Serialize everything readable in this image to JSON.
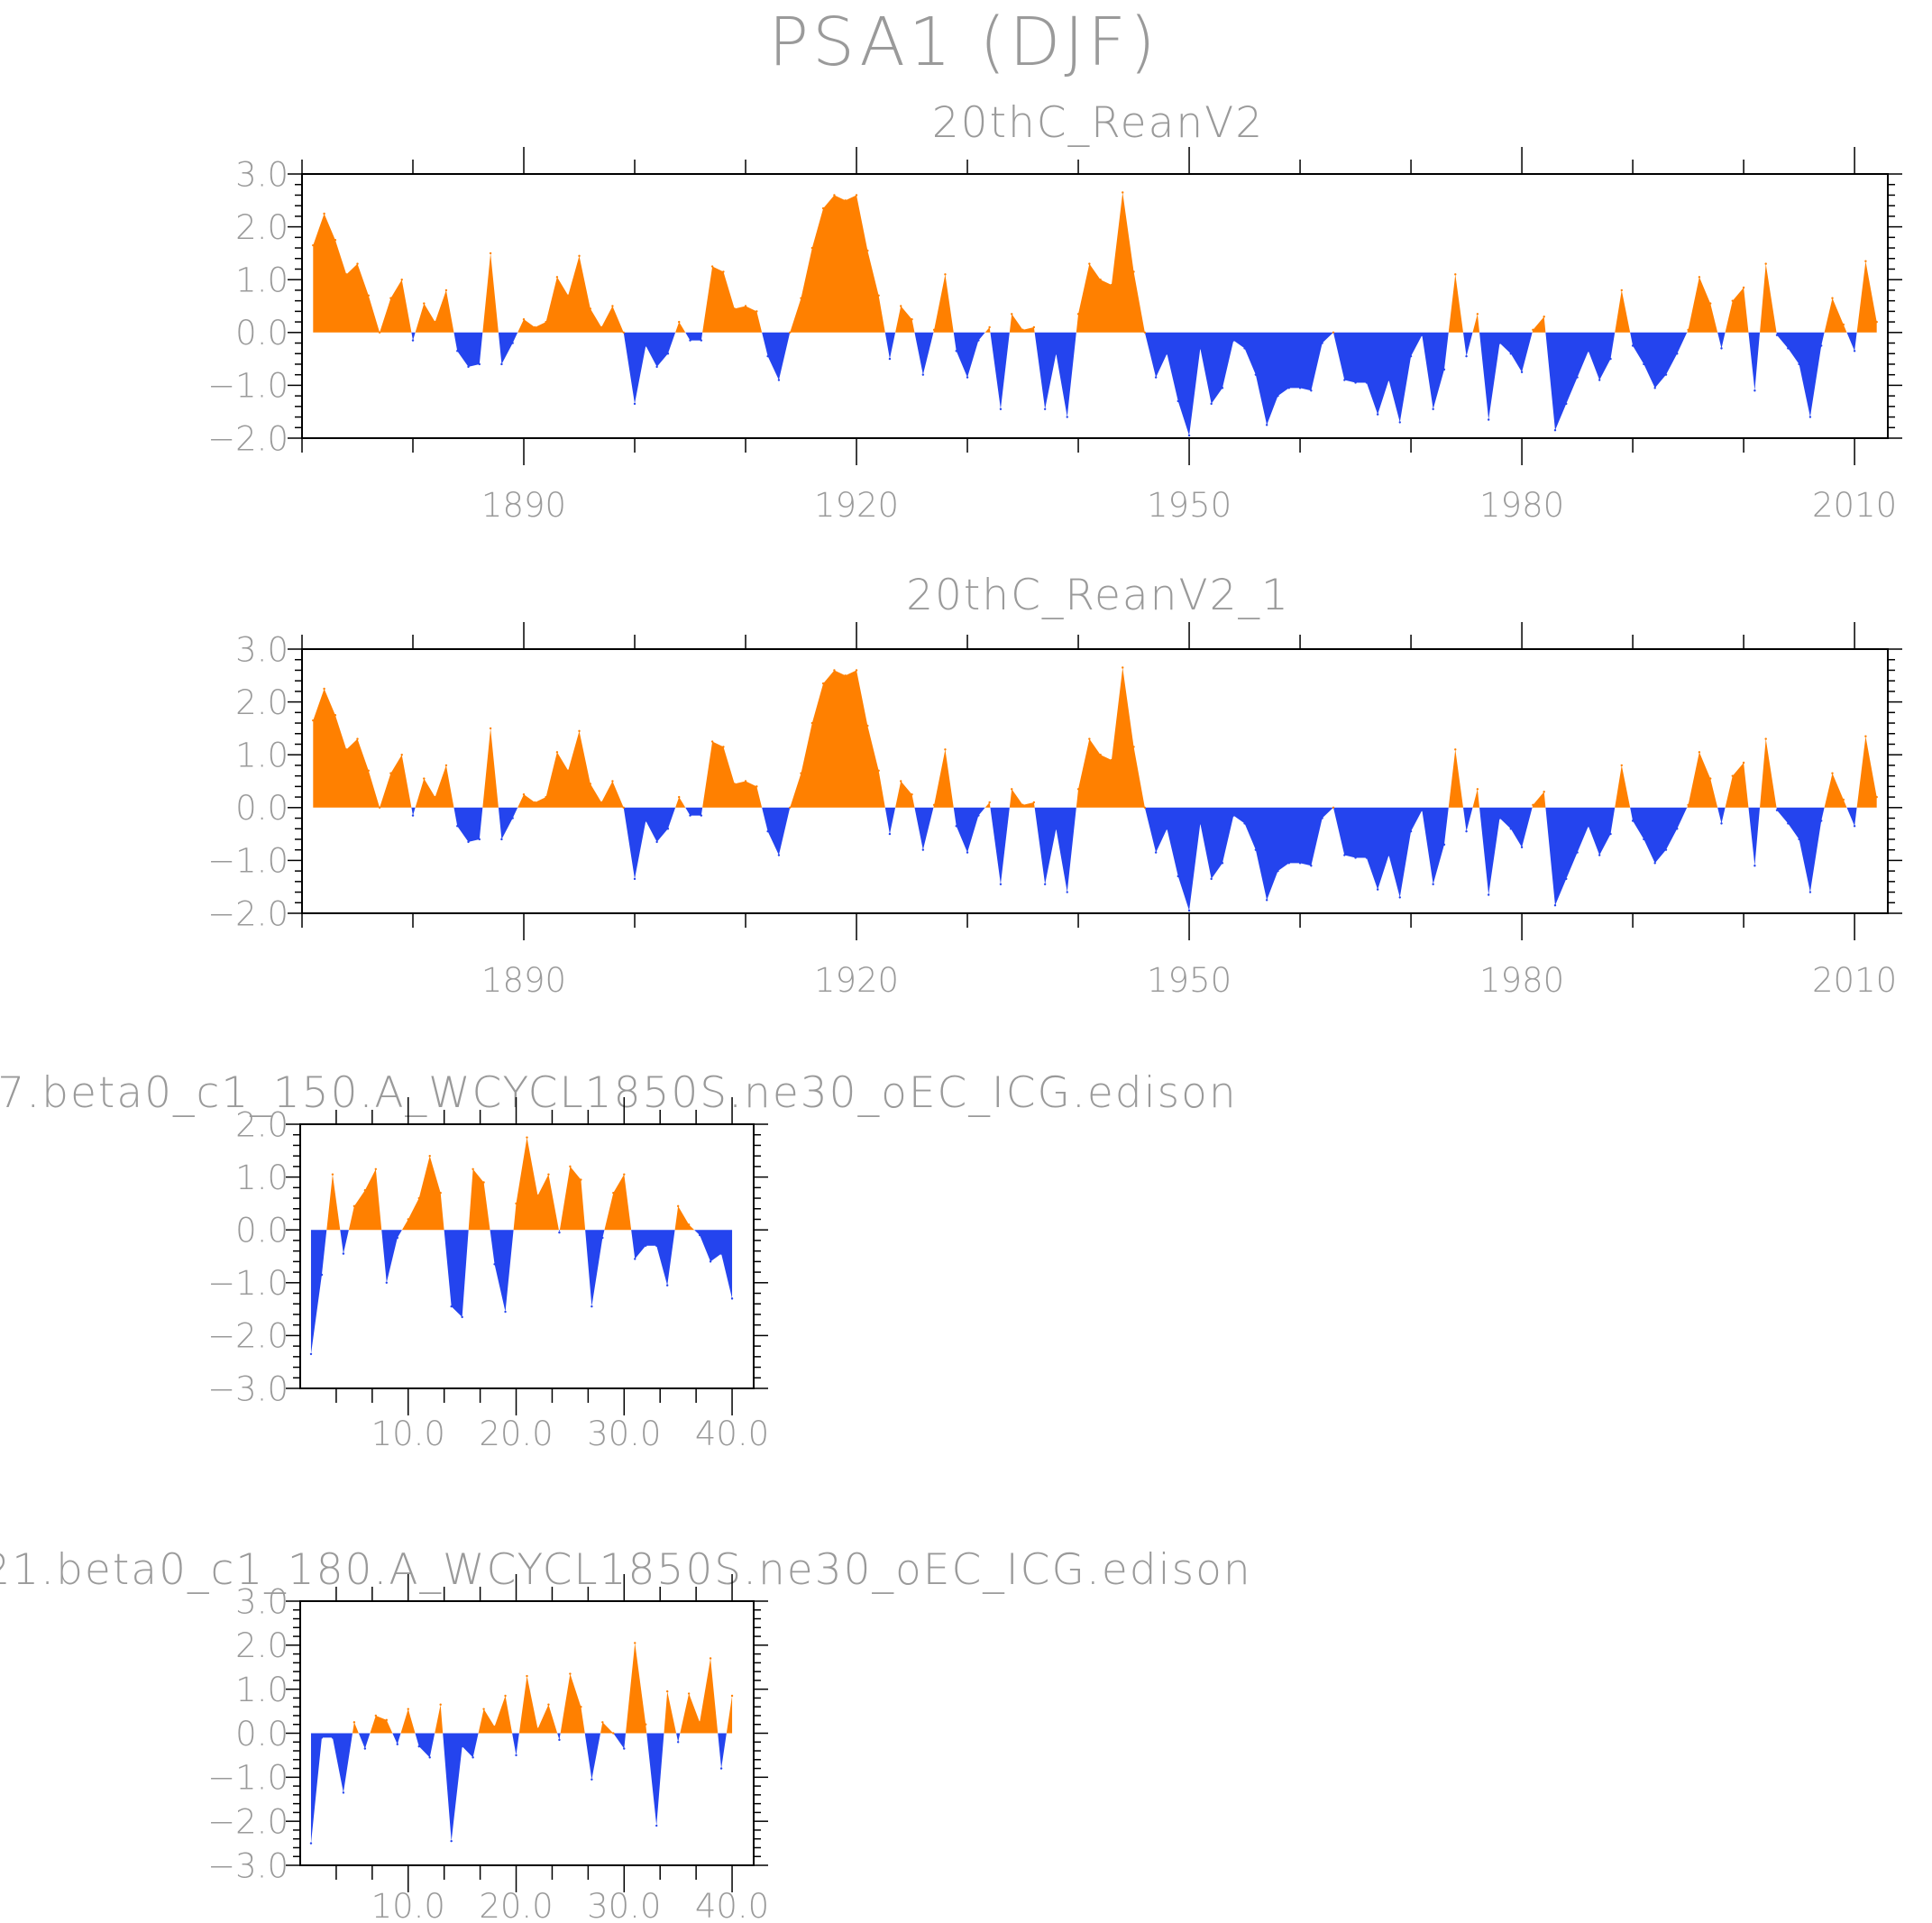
{
  "figure": {
    "title": "PSA1 (DJF)"
  },
  "colors": {
    "positive": "#ff8000",
    "negative": "#2444ee",
    "axis": "#000000",
    "text": "#9a9a9a"
  },
  "chart_data": [
    {
      "type": "area",
      "title": "20thC_ReanV2",
      "xlabel": "",
      "ylabel": "",
      "xlim": [
        1870,
        2013
      ],
      "ylim": [
        -2.0,
        3.0
      ],
      "xticks": [
        1890,
        1920,
        1950,
        1980,
        2010
      ],
      "xtick_labels": [
        "1890",
        "1920",
        "1950",
        "1980",
        "2010"
      ],
      "yticks": [
        3.0,
        2.0,
        1.0,
        0.0,
        -1.0,
        -2.0
      ],
      "ytick_labels": [
        "3.0",
        "2.0",
        "1.0",
        "0.0",
        "−1.0",
        "−2.0"
      ],
      "x_start": 1871,
      "values": [
        1.65,
        2.25,
        1.75,
        1.1,
        1.3,
        0.7,
        0.0,
        0.65,
        1.0,
        -0.15,
        0.55,
        0.2,
        0.8,
        -0.35,
        -0.65,
        -0.6,
        1.5,
        -0.6,
        -0.2,
        0.25,
        0.1,
        0.2,
        1.05,
        0.7,
        1.45,
        0.45,
        0.1,
        0.5,
        0.0,
        -1.35,
        -0.25,
        -0.65,
        -0.4,
        0.2,
        -0.15,
        -0.15,
        1.25,
        1.15,
        0.45,
        0.5,
        0.4,
        -0.45,
        -0.9,
        0.0,
        0.65,
        1.6,
        2.35,
        2.6,
        2.5,
        2.6,
        1.55,
        0.7,
        -0.5,
        0.5,
        0.25,
        -0.8,
        0.05,
        1.1,
        -0.35,
        -0.85,
        -0.15,
        0.1,
        -1.45,
        0.35,
        0.05,
        0.1,
        -1.45,
        -0.4,
        -1.6,
        0.35,
        1.3,
        1.0,
        0.9,
        2.65,
        1.15,
        0.0,
        -0.85,
        -0.4,
        -1.3,
        -1.95,
        -0.3,
        -1.35,
        -1.05,
        -0.15,
        -0.3,
        -0.8,
        -1.75,
        -1.2,
        -1.05,
        -1.05,
        -1.1,
        -0.2,
        0.0,
        -0.9,
        -0.95,
        -0.95,
        -1.55,
        -0.9,
        -1.7,
        -0.45,
        -0.05,
        -1.45,
        -0.7,
        1.1,
        -0.45,
        0.35,
        -1.65,
        -0.2,
        -0.4,
        -0.75,
        0.05,
        0.3,
        -1.85,
        -1.35,
        -0.85,
        -0.35,
        -0.9,
        -0.5,
        0.8,
        -0.25,
        -0.6,
        -1.05,
        -0.8,
        -0.4,
        0.05,
        1.05,
        0.55,
        -0.3,
        0.6,
        0.85,
        -1.1,
        1.3,
        -0.05,
        -0.3,
        -0.6,
        -1.6,
        -0.25,
        0.65,
        0.15,
        -0.35,
        1.35,
        0.2
      ]
    },
    {
      "type": "area",
      "title": "20thC_ReanV2_1",
      "xlabel": "",
      "ylabel": "",
      "xlim": [
        1870,
        2013
      ],
      "ylim": [
        -2.0,
        3.0
      ],
      "xticks": [
        1890,
        1920,
        1950,
        1980,
        2010
      ],
      "xtick_labels": [
        "1890",
        "1920",
        "1950",
        "1980",
        "2010"
      ],
      "yticks": [
        3.0,
        2.0,
        1.0,
        0.0,
        -1.0,
        -2.0
      ],
      "ytick_labels": [
        "3.0",
        "2.0",
        "1.0",
        "0.0",
        "−1.0",
        "−2.0"
      ],
      "x_start": 1871,
      "values": [
        1.65,
        2.25,
        1.75,
        1.1,
        1.3,
        0.7,
        0.0,
        0.65,
        1.0,
        -0.15,
        0.55,
        0.2,
        0.8,
        -0.35,
        -0.65,
        -0.6,
        1.5,
        -0.6,
        -0.2,
        0.25,
        0.1,
        0.2,
        1.05,
        0.7,
        1.45,
        0.45,
        0.1,
        0.5,
        0.0,
        -1.35,
        -0.25,
        -0.65,
        -0.4,
        0.2,
        -0.15,
        -0.15,
        1.25,
        1.15,
        0.45,
        0.5,
        0.4,
        -0.45,
        -0.9,
        0.0,
        0.65,
        1.6,
        2.35,
        2.6,
        2.5,
        2.6,
        1.55,
        0.7,
        -0.5,
        0.5,
        0.25,
        -0.8,
        0.05,
        1.1,
        -0.35,
        -0.85,
        -0.15,
        0.1,
        -1.45,
        0.35,
        0.05,
        0.1,
        -1.45,
        -0.4,
        -1.6,
        0.35,
        1.3,
        1.0,
        0.9,
        2.65,
        1.15,
        0.0,
        -0.85,
        -0.4,
        -1.3,
        -1.95,
        -0.3,
        -1.35,
        -1.05,
        -0.15,
        -0.3,
        -0.8,
        -1.75,
        -1.2,
        -1.05,
        -1.05,
        -1.1,
        -0.2,
        0.0,
        -0.9,
        -0.95,
        -0.95,
        -1.55,
        -0.9,
        -1.7,
        -0.45,
        -0.05,
        -1.45,
        -0.7,
        1.1,
        -0.45,
        0.35,
        -1.65,
        -0.2,
        -0.4,
        -0.75,
        0.05,
        0.3,
        -1.85,
        -1.35,
        -0.85,
        -0.35,
        -0.9,
        -0.5,
        0.8,
        -0.25,
        -0.6,
        -1.05,
        -0.8,
        -0.4,
        0.05,
        1.05,
        0.55,
        -0.3,
        0.6,
        0.85,
        -1.1,
        1.3,
        -0.05,
        -0.3,
        -0.6,
        -1.6,
        -0.25,
        0.65,
        0.15,
        -0.35,
        1.35,
        0.2
      ]
    },
    {
      "type": "area",
      "title": "7.beta0_c1_150.A_WCYCL1850S.ne30_oEC_ICG.edison",
      "xlabel": "",
      "ylabel": "",
      "xlim": [
        0,
        42
      ],
      "ylim": [
        -3.0,
        2.0
      ],
      "xticks": [
        10,
        20,
        30,
        40
      ],
      "xtick_labels": [
        "10.0",
        "20.0",
        "30.0",
        "40.0"
      ],
      "yticks": [
        2.0,
        1.0,
        0.0,
        -1.0,
        -2.0,
        -3.0
      ],
      "ytick_labels": [
        "2.0",
        "1.0",
        "0.0",
        "−1.0",
        "−2.0",
        "−3.0"
      ],
      "x_start": 1,
      "values": [
        -2.35,
        -0.85,
        1.05,
        -0.45,
        0.45,
        0.75,
        1.15,
        -1.0,
        -0.15,
        0.2,
        0.6,
        1.4,
        0.7,
        -1.45,
        -1.65,
        1.15,
        0.9,
        -0.65,
        -1.55,
        0.5,
        1.75,
        0.65,
        1.05,
        -0.05,
        1.2,
        0.95,
        -1.45,
        -0.15,
        0.7,
        1.05,
        -0.55,
        -0.3,
        -0.3,
        -1.05,
        0.45,
        0.1,
        -0.1,
        -0.6,
        -0.45,
        -1.3
      ]
    },
    {
      "type": "area",
      "title": "21.beta0_c1_180.A_WCYCL1850S.ne30_oEC_ICG.edison",
      "xlabel": "",
      "ylabel": "",
      "xlim": [
        0,
        42
      ],
      "ylim": [
        -3.0,
        3.0
      ],
      "xticks": [
        10,
        20,
        30,
        40
      ],
      "xtick_labels": [
        "10.0",
        "20.0",
        "30.0",
        "40.0"
      ],
      "yticks": [
        3.0,
        2.0,
        1.0,
        0.0,
        -1.0,
        -2.0,
        -3.0
      ],
      "ytick_labels": [
        "3.0",
        "2.0",
        "1.0",
        "0.0",
        "−1.0",
        "−2.0",
        "−3.0"
      ],
      "x_start": 1,
      "values": [
        -2.5,
        -0.1,
        -0.1,
        -1.35,
        0.25,
        -0.35,
        0.4,
        0.3,
        -0.25,
        0.55,
        -0.3,
        -0.55,
        0.65,
        -2.45,
        -0.3,
        -0.55,
        0.55,
        0.15,
        0.85,
        -0.5,
        1.3,
        0.1,
        0.65,
        -0.15,
        1.35,
        0.6,
        -1.05,
        0.25,
        0.0,
        -0.35,
        2.05,
        0.2,
        -2.1,
        0.95,
        -0.2,
        0.9,
        0.25,
        1.7,
        -0.8,
        0.85
      ]
    }
  ]
}
